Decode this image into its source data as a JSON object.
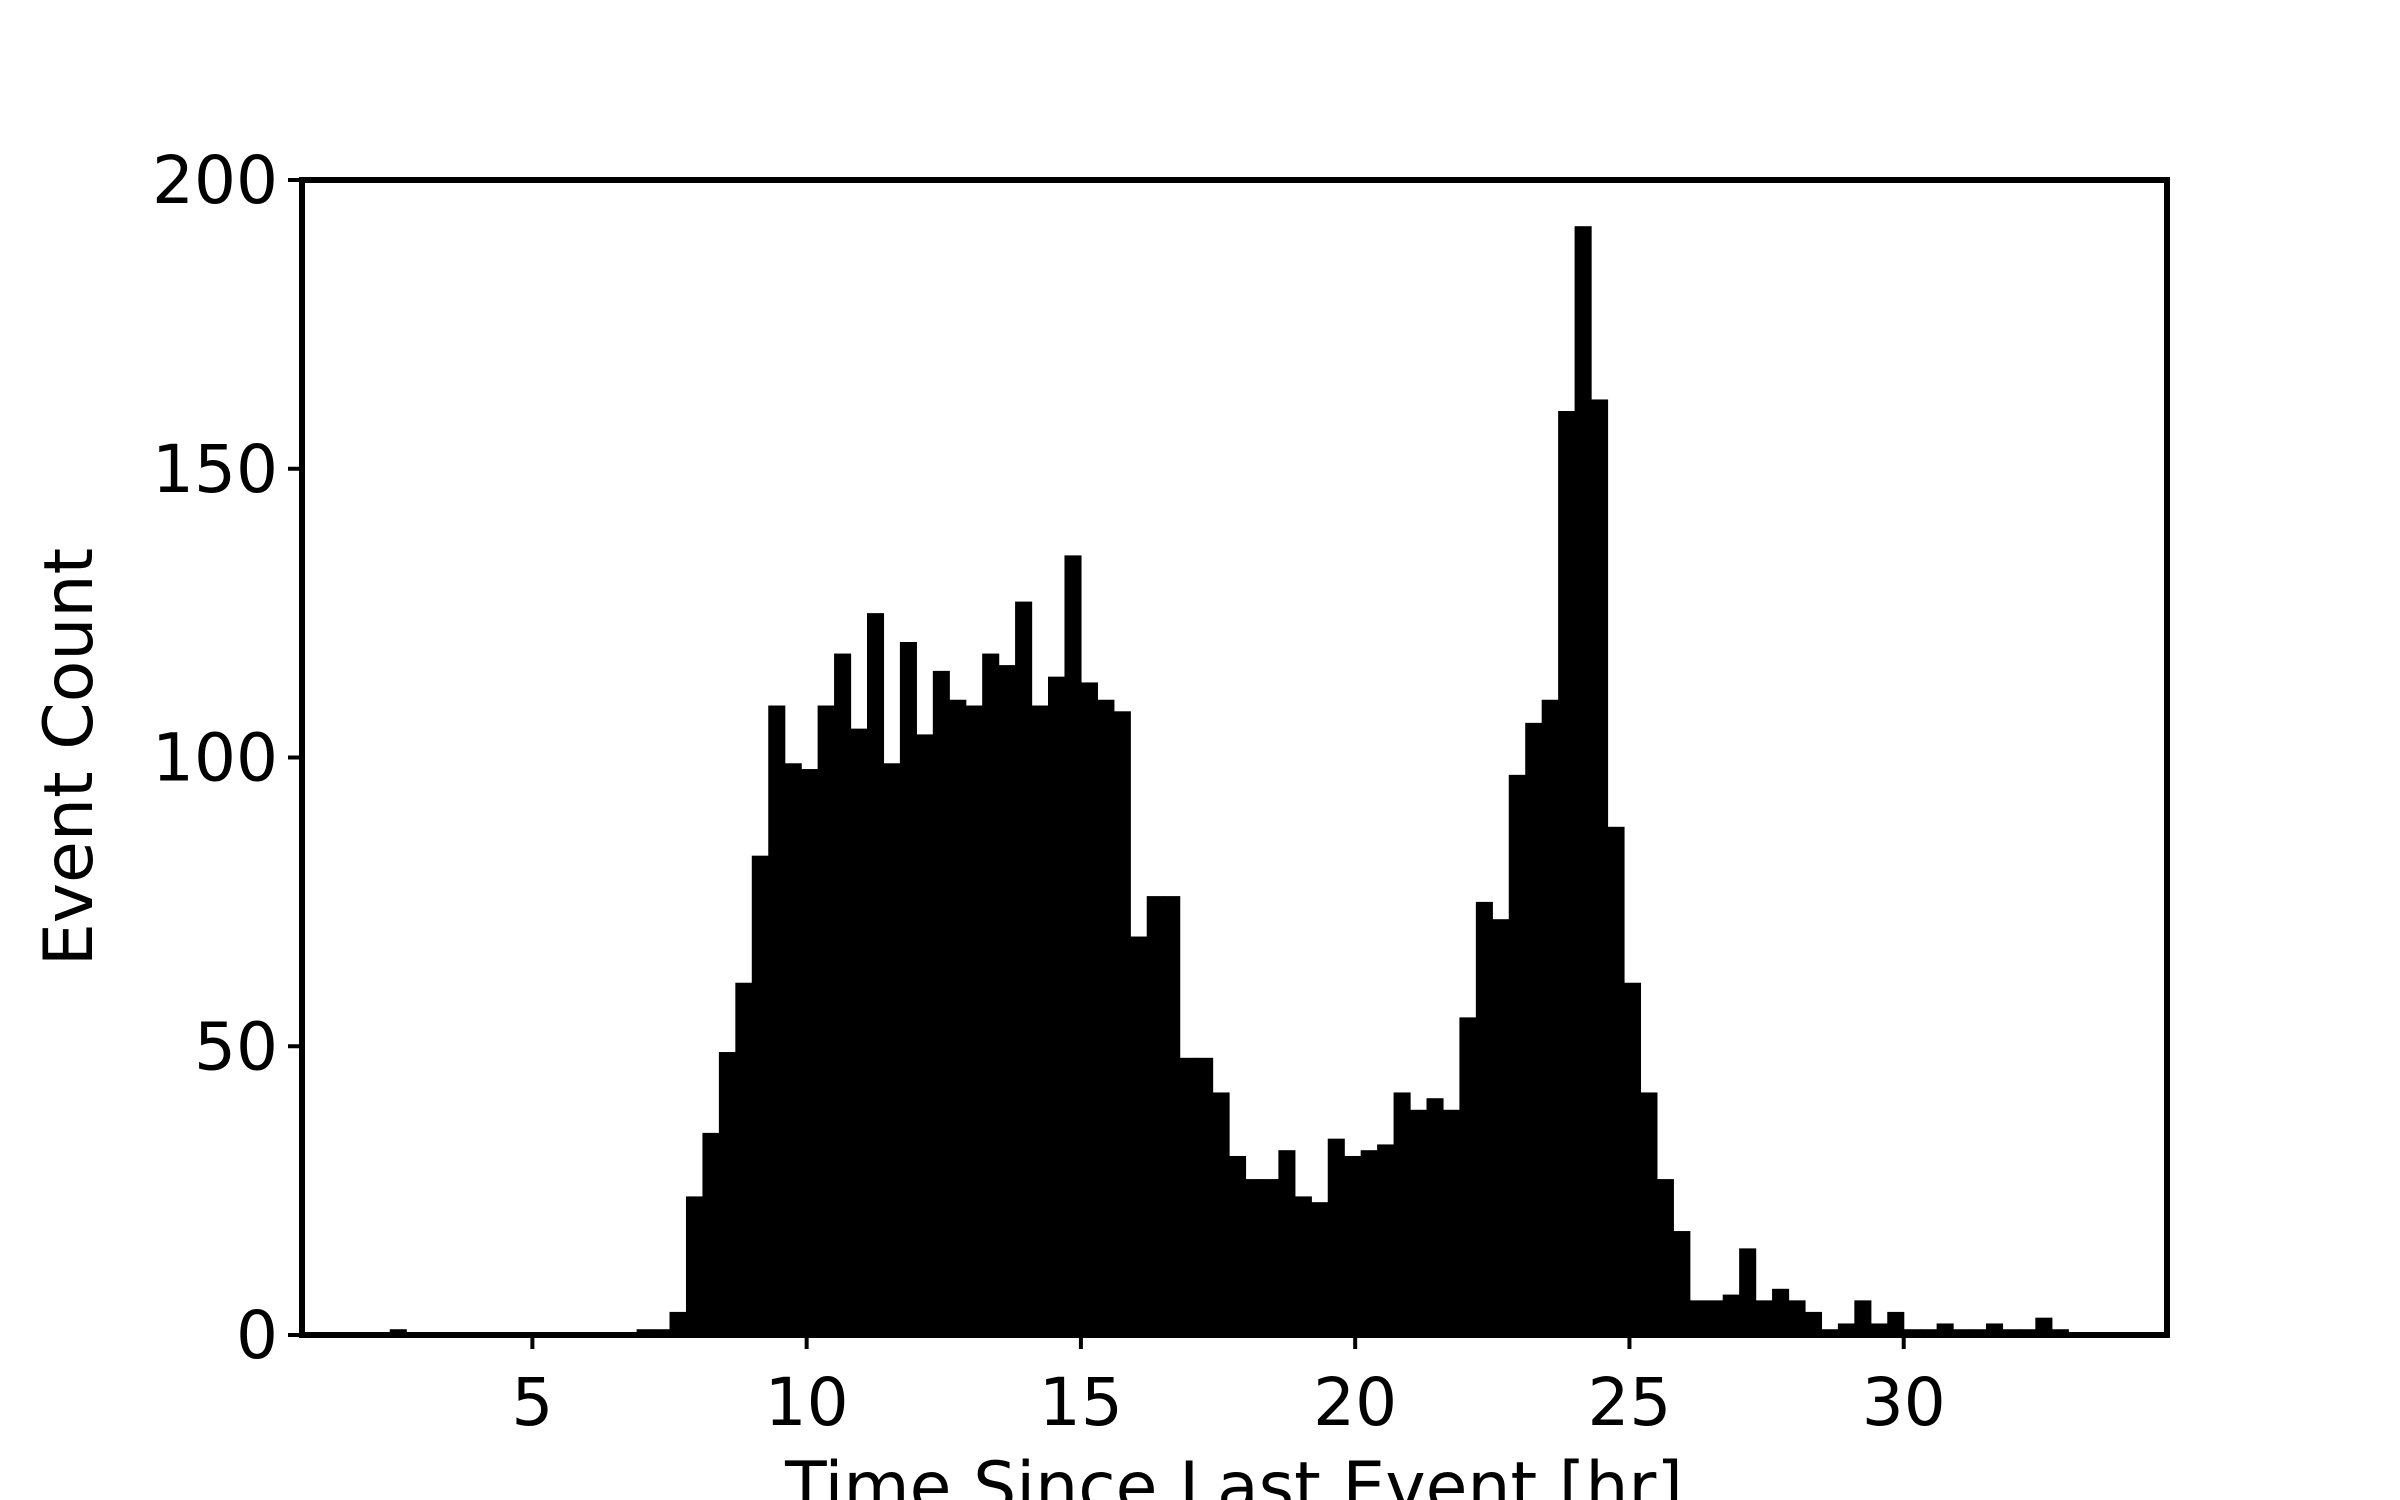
{
  "chart_data": {
    "type": "bar",
    "subtype": "histogram",
    "title": "",
    "xlabel": "Time Since Last Event [hr]",
    "ylabel": "Event Count",
    "xlim": [
      0.8,
      34.8
    ],
    "ylim": [
      0,
      200
    ],
    "x_ticks": [
      5,
      10,
      15,
      20,
      25,
      30
    ],
    "x_tick_labels": [
      "5",
      "10",
      "15",
      "20",
      "25",
      "30"
    ],
    "y_ticks": [
      0,
      50,
      100,
      150,
      200
    ],
    "y_tick_labels": [
      "0",
      "50",
      "100",
      "150",
      "200"
    ],
    "grid": false,
    "bar_color": "#000000",
    "bin_start": 1.5,
    "bin_width": 0.3,
    "counts": [
      0,
      0,
      0,
      1,
      0,
      0,
      0,
      0,
      0,
      0,
      0,
      0,
      0,
      0,
      0,
      0,
      0,
      0,
      1,
      1,
      4,
      24,
      35,
      49,
      61,
      83,
      109,
      99,
      98,
      109,
      118,
      105,
      125,
      99,
      120,
      104,
      115,
      110,
      109,
      118,
      116,
      127,
      109,
      114,
      135,
      113,
      110,
      108,
      69,
      76,
      76,
      48,
      48,
      42,
      31,
      27,
      27,
      32,
      24,
      23,
      34,
      31,
      32,
      33,
      42,
      39,
      41,
      39,
      55,
      75,
      72,
      97,
      106,
      110,
      160,
      192,
      162,
      88,
      61,
      42,
      27,
      18,
      6,
      6,
      7,
      15,
      6,
      8,
      6,
      4,
      1,
      2,
      6,
      2,
      4,
      1,
      1,
      2,
      1,
      1,
      2,
      1,
      1,
      3,
      1
    ]
  }
}
